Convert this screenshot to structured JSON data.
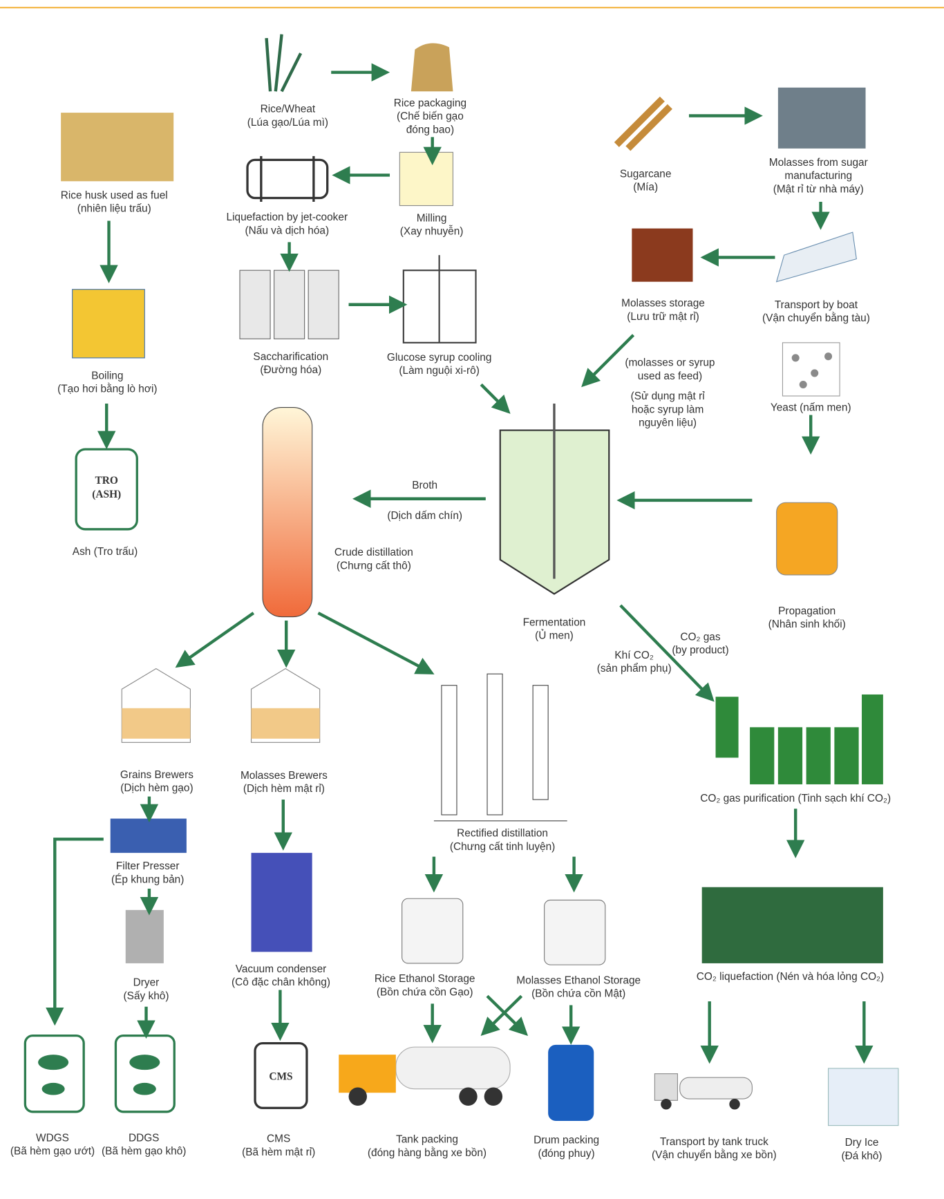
{
  "nodes": [
    {
      "lines": [
        "Rice/Wheat",
        "(Lúa gạo/Lúa mì)"
      ]
    },
    {
      "lines": [
        "Rice packaging",
        "(Chế biến gạo",
        "đóng bao)"
      ]
    },
    {
      "lines": [
        "Rice husk used as fuel",
        "(nhiên liệu trấu)"
      ]
    },
    {
      "lines": [
        "Liquefaction by jet-cooker",
        "(Nấu và dịch hóa)"
      ]
    },
    {
      "lines": [
        "Milling",
        "(Xay nhuyễn)"
      ]
    },
    {
      "lines": [
        "Sugarcane",
        "(Mía)"
      ]
    },
    {
      "lines": [
        "Molasses from sugar",
        "manufacturing",
        "(Mật rỉ từ nhà máy)"
      ]
    },
    {
      "lines": [
        "Molasses storage",
        "(Lưu trữ mật rỉ)"
      ]
    },
    {
      "lines": [
        "Transport by boat",
        "(Vận chuyển bằng tàu)"
      ]
    },
    {
      "lines": [
        "Boiling",
        "(Tạo hơi bằng lò hơi)"
      ]
    },
    {
      "lines": [
        "Saccharification",
        "(Đường hóa)"
      ]
    },
    {
      "lines": [
        "Glucose syrup cooling",
        "(Làm nguội xi-rô)"
      ]
    },
    {
      "lines": [
        "(molasses or syrup",
        "used as feed)"
      ]
    },
    {
      "lines": [
        "(Sử dụng mật rỉ",
        "hoặc syrup làm",
        "nguyên liệu)"
      ]
    },
    {
      "lines": [
        "Yeast (nấm men)"
      ]
    },
    {
      "lines": [
        "Ash (Tro trấu)"
      ],
      "icon_text": [
        "TRO",
        "(ASH)"
      ]
    },
    {
      "lines": [
        "Broth"
      ]
    },
    {
      "lines": [
        "(Dịch dấm chín)"
      ]
    },
    {
      "lines": [
        "Crude distillation",
        "(Chưng cất thô)"
      ]
    },
    {
      "lines": [
        "Fermentation",
        "(Ủ men)"
      ]
    },
    {
      "lines": [
        "Propagation",
        "(Nhân sinh khối)"
      ]
    },
    {
      "lines": [
        "CO₂ gas",
        "(by product)"
      ]
    },
    {
      "lines": [
        "Khí CO₂",
        "(sản phẩm phụ)"
      ]
    },
    {
      "lines": [
        "Grains Brewers",
        "(Dịch hèm gạo)"
      ]
    },
    {
      "lines": [
        "Molasses Brewers",
        "(Dịch hèm mật rỉ)"
      ]
    },
    {
      "lines": [
        "Rectified distillation",
        "(Chưng cất tinh luyện)"
      ]
    },
    {
      "lines": [
        "CO₂ gas purification (Tinh sạch khí CO₂)"
      ]
    },
    {
      "lines": [
        "Filter Presser",
        "(Ép khung bản)"
      ]
    },
    {
      "lines": [
        "Vacuum condenser",
        "(Cô đặc chân không)"
      ]
    },
    {
      "lines": [
        "Rice Ethanol Storage",
        "(Bồn chứa cồn Gạo)"
      ]
    },
    {
      "lines": [
        "Molasses Ethanol Storage",
        "(Bồn chứa cồn Mật)"
      ]
    },
    {
      "lines": [
        "CO₂ liquefaction (Nén và hóa lỏng CO₂)"
      ]
    },
    {
      "lines": [
        "Dryer",
        "(Sấy khô)"
      ]
    },
    {
      "lines": [
        "WDGS",
        "(Bã hèm gạo ướt)"
      ]
    },
    {
      "lines": [
        "DDGS",
        "(Bã hèm gạo khô)"
      ]
    },
    {
      "lines": [
        "CMS",
        "(Bã hèm mật rỉ)"
      ],
      "icon_text": [
        "CMS"
      ]
    },
    {
      "lines": [
        "Tank packing",
        "(đóng hàng bằng xe bồn)"
      ]
    },
    {
      "lines": [
        "Drum packing",
        "(đóng phuy)"
      ]
    },
    {
      "lines": [
        "Transport by tank truck",
        "(Vận chuyển bằng xe bồn)"
      ]
    },
    {
      "lines": [
        "Dry Ice",
        "(Đá khô)"
      ]
    }
  ]
}
